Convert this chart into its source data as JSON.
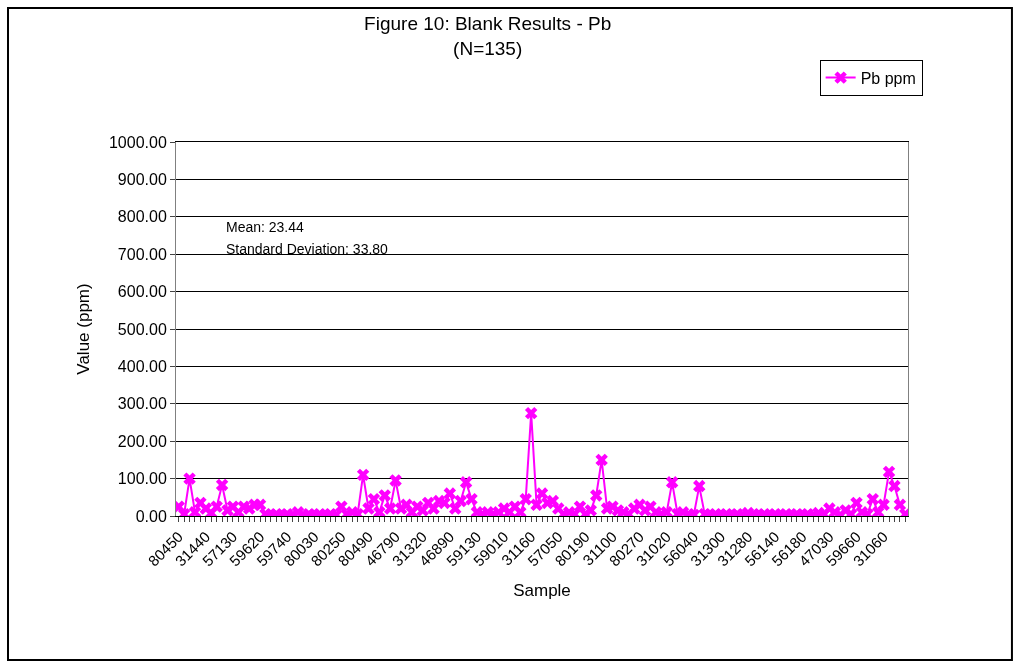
{
  "chart_data": {
    "type": "line",
    "title": "Figure 10: Blank Results - Pb",
    "subtitle": "(N=135)",
    "xlabel": "Sample",
    "ylabel": "Value (ppm)",
    "categories": [
      "80450",
      null,
      null,
      null,
      null,
      "31440",
      null,
      null,
      null,
      null,
      "57130",
      null,
      null,
      null,
      null,
      "59620",
      null,
      null,
      null,
      null,
      "59740",
      null,
      null,
      null,
      null,
      "80030",
      null,
      null,
      null,
      null,
      "80250",
      null,
      null,
      null,
      null,
      "80490",
      null,
      null,
      null,
      null,
      "46790",
      null,
      null,
      null,
      null,
      "31320",
      null,
      null,
      null,
      null,
      "46890",
      null,
      null,
      null,
      null,
      "59130",
      null,
      null,
      null,
      null,
      "59010",
      null,
      null,
      null,
      null,
      "31160",
      null,
      null,
      null,
      null,
      "57050",
      null,
      null,
      null,
      null,
      "80190",
      null,
      null,
      null,
      null,
      "31100",
      null,
      null,
      null,
      null,
      "80270",
      null,
      null,
      null,
      null,
      "31020",
      null,
      null,
      null,
      null,
      "56040",
      null,
      null,
      null,
      null,
      "31300",
      null,
      null,
      null,
      null,
      "31280",
      null,
      null,
      null,
      null,
      "56140",
      null,
      null,
      null,
      null,
      "56180",
      null,
      null,
      null,
      null,
      "47030",
      null,
      null,
      null,
      null,
      "59660",
      null,
      null,
      null,
      null,
      "31060",
      null,
      null,
      null,
      null
    ],
    "series": [
      {
        "name": "Pb ppm",
        "color": "#ff00ff",
        "values": [
          25,
          5,
          100,
          10,
          35,
          20,
          8,
          25,
          83,
          15,
          25,
          10,
          25,
          20,
          30,
          30,
          5,
          3,
          5,
          3,
          5,
          3,
          10,
          3,
          5,
          3,
          5,
          3,
          5,
          3,
          25,
          5,
          10,
          5,
          110,
          20,
          45,
          10,
          55,
          20,
          95,
          20,
          30,
          10,
          25,
          15,
          35,
          20,
          40,
          35,
          60,
          20,
          40,
          90,
          45,
          10,
          5,
          10,
          5,
          10,
          20,
          10,
          25,
          10,
          45,
          275,
          30,
          60,
          35,
          40,
          20,
          5,
          10,
          5,
          25,
          5,
          15,
          55,
          150,
          20,
          25,
          15,
          10,
          5,
          20,
          30,
          15,
          25,
          10,
          5,
          10,
          90,
          5,
          10,
          5,
          3,
          80,
          5,
          3,
          5,
          3,
          5,
          3,
          5,
          3,
          8,
          5,
          3,
          5,
          3,
          5,
          3,
          5,
          3,
          5,
          3,
          5,
          3,
          8,
          5,
          20,
          10,
          3,
          15,
          5,
          35,
          10,
          5,
          45,
          10,
          30,
          118,
          80,
          30,
          5
        ]
      }
    ],
    "ylim": [
      0,
      1000
    ],
    "yticks": [
      {
        "value": 0,
        "label": "0.00"
      },
      {
        "value": 100,
        "label": "100.00"
      },
      {
        "value": 200,
        "label": "200.00"
      },
      {
        "value": 300,
        "label": "300.00"
      },
      {
        "value": 400,
        "label": "400.00"
      },
      {
        "value": 500,
        "label": "500.00"
      },
      {
        "value": 600,
        "label": "600.00"
      },
      {
        "value": 700,
        "label": "700.00"
      },
      {
        "value": 800,
        "label": "800.00"
      },
      {
        "value": 900,
        "label": "900.00"
      },
      {
        "value": 1000,
        "label": "1000.00"
      }
    ],
    "annotations": [
      "Mean: 23.44",
      "Standard Deviation: 33.80"
    ],
    "grid": "y",
    "legend": "top right",
    "marker": "cross",
    "line_style": "solid"
  }
}
